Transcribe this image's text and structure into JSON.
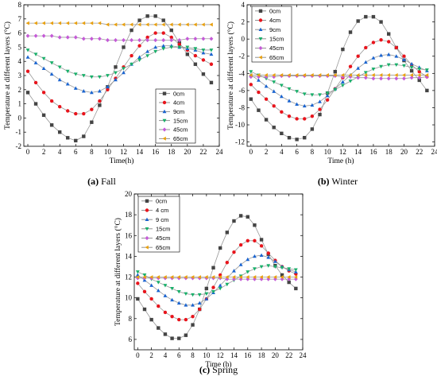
{
  "figure": {
    "captions": [
      {
        "label": "(a)",
        "text": "Fall"
      },
      {
        "label": "(b)",
        "text": "Winter"
      },
      {
        "label": "(c)",
        "text": "Spring"
      }
    ]
  },
  "styles": {
    "series_colors": [
      "#444444",
      "#e8141c",
      "#1a64d0",
      "#18b06a",
      "#c45bd6",
      "#e8a010"
    ],
    "marker_shapes": [
      "square",
      "circle",
      "triangle-up",
      "triangle-down",
      "diamond",
      "triangle-left"
    ]
  },
  "chart_data": [
    {
      "type": "line",
      "caption": "(a) Fall",
      "xlabel": "Time(h)",
      "ylabel": "Temperature at different layers (°C)",
      "xlim": [
        -0.5,
        24
      ],
      "ylim": [
        -2,
        8
      ],
      "xticks": [
        0,
        2,
        4,
        6,
        8,
        10,
        12,
        14,
        16,
        18,
        20,
        22,
        24
      ],
      "yticks": [
        -2,
        -1,
        0,
        1,
        2,
        3,
        4,
        5,
        6,
        7,
        8
      ],
      "legend_position": "center-right",
      "x": [
        0,
        1,
        2,
        3,
        4,
        5,
        6,
        7,
        8,
        9,
        10,
        11,
        12,
        13,
        14,
        15,
        16,
        17,
        18,
        19,
        20,
        21,
        22,
        23
      ],
      "series": [
        {
          "name": "0cm",
          "values": [
            1.8,
            1.0,
            0.2,
            -0.5,
            -1.0,
            -1.4,
            -1.6,
            -1.3,
            -0.3,
            0.9,
            2.2,
            3.6,
            5.0,
            6.2,
            6.9,
            7.2,
            7.2,
            6.9,
            6.2,
            5.3,
            4.5,
            3.8,
            3.1,
            2.5
          ]
        },
        {
          "name": "4cm",
          "values": [
            3.3,
            2.5,
            1.8,
            1.2,
            0.8,
            0.5,
            0.3,
            0.3,
            0.6,
            1.2,
            2.0,
            2.8,
            3.6,
            4.4,
            5.1,
            5.7,
            6.0,
            6.0,
            5.7,
            5.2,
            4.8,
            4.4,
            4.1,
            3.8
          ]
        },
        {
          "name": "9cm",
          "values": [
            4.3,
            3.9,
            3.5,
            3.1,
            2.7,
            2.4,
            2.1,
            1.9,
            1.8,
            1.9,
            2.2,
            2.7,
            3.2,
            3.8,
            4.3,
            4.7,
            5.0,
            5.1,
            5.1,
            5.0,
            4.9,
            4.8,
            4.6,
            4.5
          ]
        },
        {
          "name": "15cm",
          "values": [
            4.8,
            4.5,
            4.2,
            3.9,
            3.6,
            3.3,
            3.1,
            3.0,
            2.9,
            2.9,
            3.0,
            3.2,
            3.5,
            3.8,
            4.1,
            4.4,
            4.7,
            4.9,
            5.0,
            5.0,
            5.0,
            4.9,
            4.8,
            4.8
          ]
        },
        {
          "name": "45cm",
          "values": [
            5.8,
            5.8,
            5.8,
            5.8,
            5.7,
            5.7,
            5.7,
            5.6,
            5.6,
            5.6,
            5.5,
            5.5,
            5.5,
            5.5,
            5.5,
            5.5,
            5.5,
            5.5,
            5.5,
            5.5,
            5.6,
            5.6,
            5.6,
            5.6
          ]
        },
        {
          "name": "65cm",
          "values": [
            6.7,
            6.7,
            6.7,
            6.7,
            6.7,
            6.7,
            6.7,
            6.7,
            6.7,
            6.7,
            6.6,
            6.6,
            6.6,
            6.6,
            6.6,
            6.6,
            6.6,
            6.6,
            6.6,
            6.6,
            6.6,
            6.6,
            6.6,
            6.6
          ]
        }
      ]
    },
    {
      "type": "line",
      "caption": "(b) Winter",
      "xlabel": "Time (h)",
      "ylabel": "Temperature at different layers (°C)",
      "xlim": [
        -0.5,
        24
      ],
      "ylim": [
        -12.5,
        4
      ],
      "xticks": [
        0,
        2,
        4,
        6,
        8,
        10,
        12,
        14,
        16,
        18,
        20,
        22,
        24
      ],
      "yticks": [
        -12,
        -10,
        -8,
        -6,
        -4,
        -2,
        0,
        2,
        4
      ],
      "legend_position": "top-left",
      "x": [
        0,
        1,
        2,
        3,
        4,
        5,
        6,
        7,
        8,
        9,
        10,
        11,
        12,
        13,
        14,
        15,
        16,
        17,
        18,
        19,
        20,
        21,
        22,
        23
      ],
      "series": [
        {
          "name": "0cm",
          "values": [
            -7.0,
            -8.3,
            -9.4,
            -10.3,
            -11.0,
            -11.5,
            -11.7,
            -11.5,
            -10.5,
            -8.8,
            -6.3,
            -3.8,
            -1.2,
            0.8,
            2.1,
            2.6,
            2.6,
            2.0,
            0.6,
            -1.0,
            -2.5,
            -3.7,
            -4.8,
            -6.0
          ]
        },
        {
          "name": "4cm",
          "values": [
            -5.3,
            -6.2,
            -7.0,
            -7.8,
            -8.5,
            -9.0,
            -9.3,
            -9.3,
            -9.0,
            -8.2,
            -7.1,
            -5.8,
            -4.5,
            -3.2,
            -2.0,
            -1.0,
            -0.4,
            -0.1,
            -0.3,
            -1.0,
            -2.0,
            -3.0,
            -3.8,
            -4.4
          ]
        },
        {
          "name": "9cm",
          "values": [
            -4.2,
            -4.8,
            -5.5,
            -6.1,
            -6.7,
            -7.2,
            -7.6,
            -7.8,
            -7.7,
            -7.3,
            -6.6,
            -5.8,
            -5.0,
            -4.2,
            -3.4,
            -2.7,
            -2.2,
            -1.9,
            -1.8,
            -2.0,
            -2.4,
            -2.9,
            -3.3,
            -3.7
          ]
        },
        {
          "name": "15cm",
          "values": [
            -3.8,
            -4.2,
            -4.6,
            -5.0,
            -5.4,
            -5.8,
            -6.1,
            -6.4,
            -6.5,
            -6.5,
            -6.3,
            -5.9,
            -5.4,
            -4.9,
            -4.4,
            -3.9,
            -3.5,
            -3.2,
            -3.0,
            -3.0,
            -3.1,
            -3.3,
            -3.5,
            -3.6
          ]
        },
        {
          "name": "45cm",
          "values": [
            -4.4,
            -4.4,
            -4.4,
            -4.4,
            -4.3,
            -4.3,
            -4.3,
            -4.3,
            -4.3,
            -4.3,
            -4.3,
            -4.3,
            -4.4,
            -4.4,
            -4.5,
            -4.5,
            -4.6,
            -4.6,
            -4.6,
            -4.6,
            -4.6,
            -4.5,
            -4.5,
            -4.4
          ]
        },
        {
          "name": "65cm",
          "values": [
            -4.2,
            -4.2,
            -4.2,
            -4.2,
            -4.2,
            -4.2,
            -4.2,
            -4.2,
            -4.2,
            -4.2,
            -4.2,
            -4.2,
            -4.2,
            -4.2,
            -4.2,
            -4.2,
            -4.2,
            -4.2,
            -4.2,
            -4.2,
            -4.2,
            -4.2,
            -4.2,
            -4.2
          ]
        }
      ]
    },
    {
      "type": "line",
      "caption": "(c) Spring",
      "xlabel": "Time (h)",
      "ylabel": "Temperature at different layers (°C)",
      "xlim": [
        -0.5,
        24
      ],
      "ylim": [
        5,
        20
      ],
      "xticks": [
        0,
        2,
        4,
        6,
        8,
        10,
        12,
        14,
        16,
        18,
        20,
        22,
        24
      ],
      "yticks": [
        6,
        8,
        10,
        12,
        14,
        16,
        18,
        20
      ],
      "legend_position": "top-left",
      "x": [
        0,
        1,
        2,
        3,
        4,
        5,
        6,
        7,
        8,
        9,
        10,
        11,
        12,
        13,
        14,
        15,
        16,
        17,
        18,
        19,
        20,
        21,
        22,
        23
      ],
      "series": [
        {
          "name": "0cm",
          "values": [
            9.9,
            8.9,
            7.9,
            7.1,
            6.5,
            6.1,
            6.1,
            6.4,
            7.4,
            8.9,
            10.9,
            12.9,
            14.8,
            16.3,
            17.4,
            17.9,
            17.8,
            17.0,
            15.6,
            14.2,
            13.1,
            12.2,
            11.5,
            10.9
          ]
        },
        {
          "name": "4 cm",
          "values": [
            11.4,
            10.6,
            9.9,
            9.2,
            8.6,
            8.2,
            7.9,
            7.9,
            8.2,
            8.9,
            9.9,
            11.0,
            12.2,
            13.4,
            14.4,
            15.1,
            15.5,
            15.5,
            15.0,
            14.3,
            13.6,
            13.0,
            12.6,
            12.3
          ]
        },
        {
          "name": "9 cm",
          "values": [
            12.2,
            11.7,
            11.2,
            10.7,
            10.2,
            9.8,
            9.5,
            9.3,
            9.3,
            9.5,
            9.9,
            10.5,
            11.2,
            11.9,
            12.6,
            13.2,
            13.7,
            14.0,
            14.1,
            13.9,
            13.5,
            13.0,
            12.7,
            12.5
          ]
        },
        {
          "name": "15cm",
          "values": [
            12.5,
            12.2,
            11.8,
            11.5,
            11.2,
            10.9,
            10.6,
            10.4,
            10.3,
            10.3,
            10.4,
            10.6,
            10.9,
            11.3,
            11.7,
            12.1,
            12.5,
            12.8,
            13.0,
            13.1,
            13.0,
            12.9,
            12.8,
            12.7
          ]
        },
        {
          "name": "45cm",
          "values": [
            11.9,
            11.9,
            11.9,
            11.9,
            11.9,
            11.9,
            11.9,
            11.9,
            11.9,
            11.9,
            11.9,
            11.9,
            11.9,
            11.8,
            11.8,
            11.8,
            11.8,
            11.8,
            11.8,
            11.8,
            11.8,
            11.8,
            11.8,
            11.8
          ]
        },
        {
          "name": "65cm",
          "values": [
            12.0,
            12.0,
            12.0,
            12.0,
            12.0,
            12.0,
            12.0,
            12.0,
            12.0,
            12.0,
            12.0,
            12.0,
            12.0,
            12.0,
            12.0,
            12.0,
            12.0,
            12.0,
            12.0,
            12.0,
            12.0,
            12.0,
            12.0,
            12.0
          ]
        }
      ]
    }
  ]
}
